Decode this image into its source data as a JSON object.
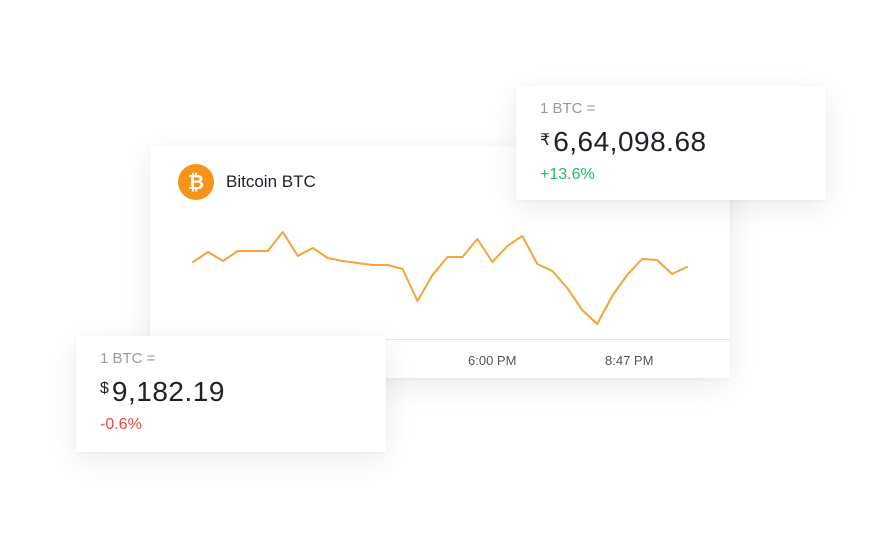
{
  "coin": {
    "name": "Bitcoin BTC",
    "icon": "bitcoin-icon",
    "icon_glyph": "₿",
    "color": "#f7931a"
  },
  "chart": {
    "line_color": "#f5a33a",
    "x_ticks": [
      "6:00 PM",
      "8:47 PM"
    ],
    "series": [
      0.62,
      0.72,
      0.63,
      0.73,
      0.73,
      0.73,
      0.92,
      0.68,
      0.76,
      0.66,
      0.63,
      0.61,
      0.59,
      0.59,
      0.55,
      0.23,
      0.49,
      0.67,
      0.67,
      0.85,
      0.62,
      0.78,
      0.88,
      0.6,
      0.53,
      0.36,
      0.14,
      0.0,
      0.28,
      0.49,
      0.65,
      0.64,
      0.5,
      0.57
    ]
  },
  "inr_card": {
    "unit": "1 BTC =",
    "currency_symbol": "₹",
    "price": "6,64,098.68",
    "change": "+13.6%",
    "change_color": "#1ebc6e"
  },
  "usd_card": {
    "unit": "1 BTC =",
    "currency_symbol": "$",
    "price": "9,182.19",
    "change": "-0.6%",
    "change_color": "#ee4b3a"
  }
}
